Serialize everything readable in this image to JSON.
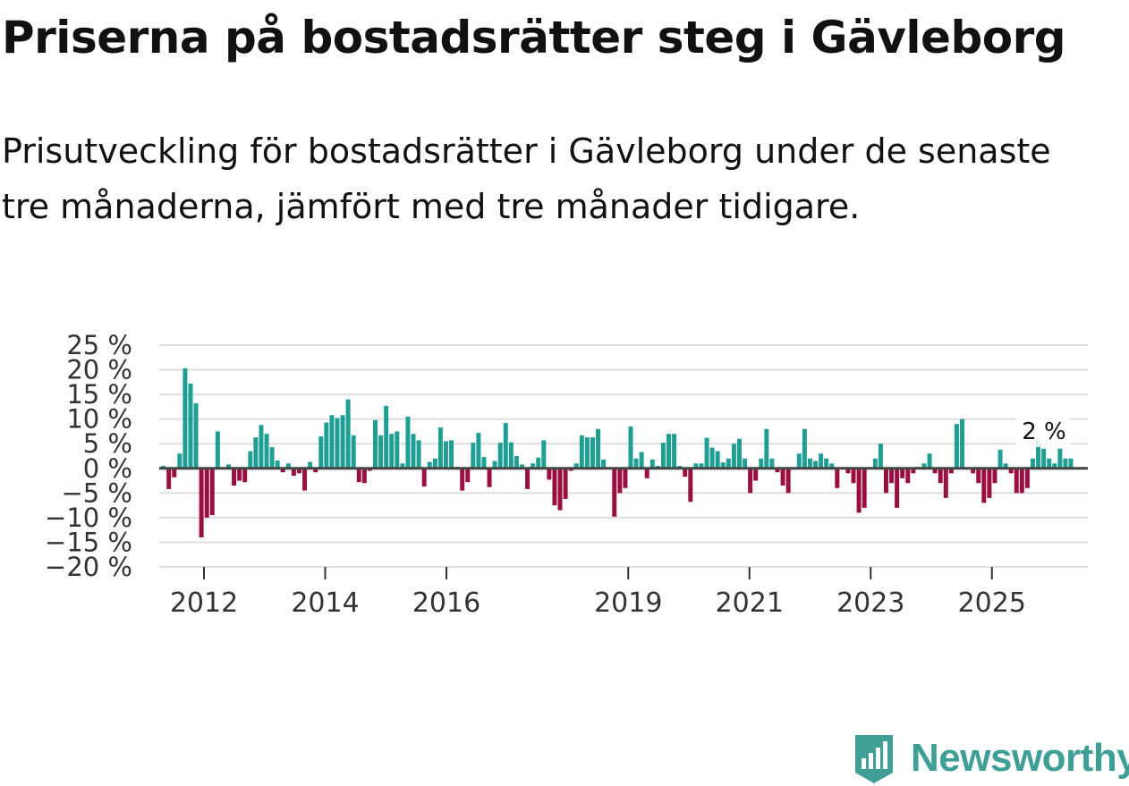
{
  "title": "Priserna på bostadsrätter steg i Gävleborg",
  "subtitle": "Prisutveckling för bostadsrätter i Gävleborg under de senaste tre månaderna, jämfört med tre månader tidigare.",
  "brand": {
    "name": "Newsworthy",
    "logo_icon": "bar-chart-icon"
  },
  "colors": {
    "positive": "#1f9e93",
    "negative": "#9a0f3f",
    "grid": "#dddddd",
    "zero": "#444444",
    "brand": "#3f9e96"
  },
  "chart_data": {
    "type": "bar",
    "title": "Priserna på bostadsrätter steg i Gävleborg",
    "ylabel": "",
    "xlabel": "",
    "ylim": [
      -20,
      25
    ],
    "x_start": 2011.33,
    "x_step": 0.0833,
    "y_ticks": [
      25,
      20,
      15,
      10,
      5,
      0,
      -5,
      -10,
      -15,
      -20
    ],
    "y_tick_labels": [
      "25 %",
      "20 %",
      "15 %",
      "10 %",
      "5 %",
      "0 %",
      "−5 %",
      "−10 %",
      "−15 %",
      "−20 %"
    ],
    "x_ticks": [
      2012,
      2014,
      2016,
      2019,
      2021,
      2023,
      2025
    ],
    "x_tick_labels": [
      "2012",
      "2014",
      "2016",
      "2019",
      "2021",
      "2023",
      "2025"
    ],
    "annotation": "2 %",
    "values": [
      0.5,
      -4.2,
      -1.8,
      3.0,
      20.3,
      17.2,
      13.2,
      -14.0,
      -10.0,
      -9.5,
      7.5,
      0.2,
      0.8,
      -3.5,
      -2.5,
      -2.8,
      3.5,
      6.3,
      8.8,
      7.0,
      4.3,
      1.6,
      -0.8,
      1.0,
      -1.5,
      -1.0,
      -4.5,
      1.3,
      -0.8,
      6.5,
      9.3,
      10.8,
      10.2,
      10.8,
      14.0,
      6.7,
      -2.8,
      -3.0,
      -0.5,
      9.8,
      6.7,
      12.7,
      7.0,
      7.5,
      1.0,
      10.5,
      7.0,
      5.7,
      -3.7,
      1.3,
      2.0,
      8.3,
      5.5,
      5.7,
      0.3,
      -4.5,
      -2.8,
      5.2,
      7.2,
      2.3,
      -3.8,
      1.5,
      5.2,
      9.2,
      5.3,
      2.5,
      0.8,
      -4.2,
      1.0,
      2.2,
      5.7,
      -2.3,
      -7.5,
      -8.5,
      -6.2,
      -0.5,
      1.0,
      6.7,
      6.3,
      6.3,
      8.0,
      1.8,
      0.2,
      -9.8,
      -5.0,
      -4.0,
      8.5,
      2.0,
      3.3,
      -2.0,
      1.8,
      0.5,
      5.2,
      7.0,
      7.0,
      0.5,
      -1.7,
      -6.8,
      1.0,
      1.0,
      6.2,
      4.2,
      3.5,
      1.2,
      2.0,
      5.0,
      6.0,
      2.0,
      -5.0,
      -2.5,
      2.0,
      8.0,
      2.0,
      -0.8,
      -3.5,
      -5.0,
      0.2,
      3.0,
      8.0,
      2.0,
      1.5,
      3.0,
      2.0,
      1.0,
      -4.0,
      0.2,
      -1.0,
      -3.0,
      -9.0,
      -8.0,
      0.2,
      2.0,
      5.0,
      -5.0,
      -3.0,
      -8.0,
      -2.0,
      -3.0,
      -1.0,
      0.3,
      1.0,
      3.0,
      -1.0,
      -3.0,
      -6.0,
      -1.0,
      9.0,
      10.0,
      0.2,
      -1.0,
      -3.0,
      -7.0,
      -6.0,
      -3.0,
      3.8,
      1.0,
      -1.0,
      -5.0,
      -5.0,
      -4.0,
      2.0,
      6.0,
      4.0,
      2.0,
      1.0,
      4.0,
      2.0,
      2.0
    ]
  }
}
